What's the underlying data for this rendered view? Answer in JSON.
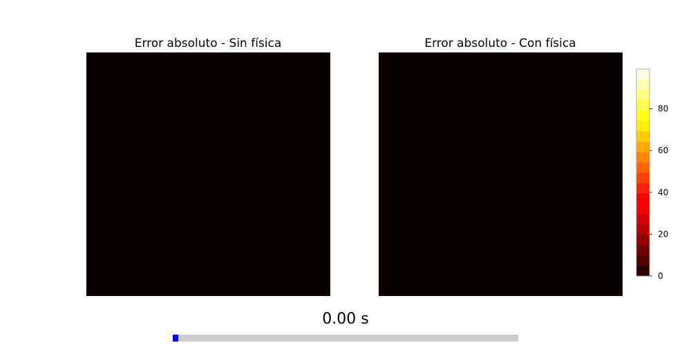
{
  "chart_data": {
    "type": "heatmap",
    "panels": [
      {
        "title": "Error absoluto - Sin física",
        "values": [
          [
            0
          ]
        ],
        "xlabel": "",
        "ylabel": ""
      },
      {
        "title": "Error absoluto - Con física",
        "values": [
          [
            0
          ]
        ],
        "xlabel": "",
        "ylabel": ""
      }
    ],
    "colormap": "hot",
    "colorbar": {
      "vmin": 0,
      "vmax": 99,
      "ticks": [
        "0",
        "20",
        "40",
        "60",
        "80"
      ],
      "tick_values": [
        0,
        20,
        40,
        60,
        80
      ],
      "levels": 20
    },
    "heatmap_color": "#0a0000"
  },
  "animation": {
    "time_label": "0.00 s",
    "progress": 0.0,
    "progress_color": "#0000ff",
    "track_color": "#cccccc"
  }
}
